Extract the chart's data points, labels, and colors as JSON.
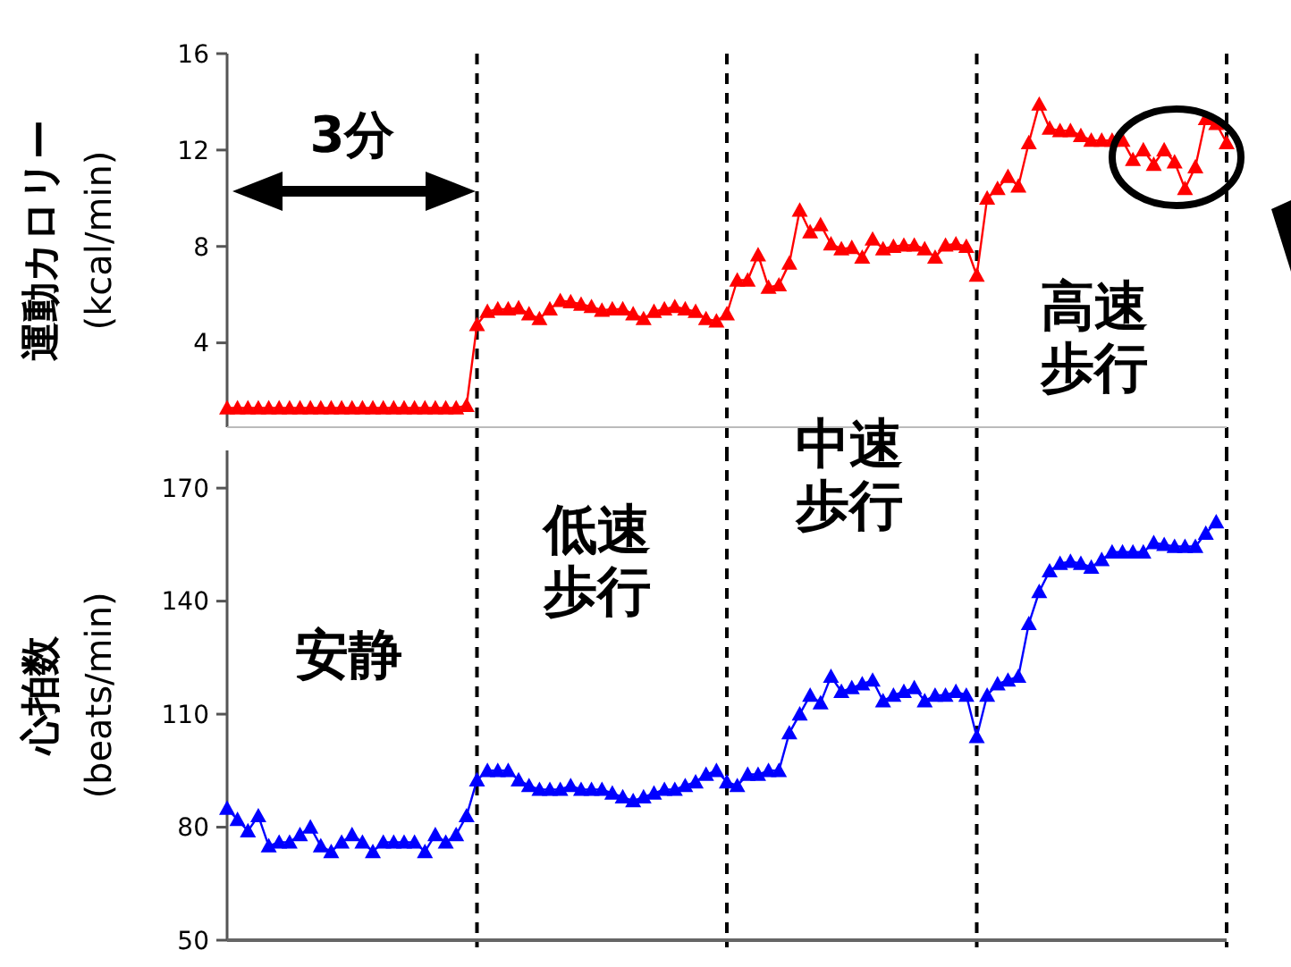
{
  "chart_data": [
    {
      "type": "line",
      "ylabel": "運動カロリー\n(kcal/min)",
      "categories": [
        null,
        null,
        null,
        null,
        null,
        null,
        null,
        null,
        null,
        null,
        null,
        null,
        null,
        null,
        null,
        null,
        null,
        null,
        null,
        null,
        null,
        null,
        null,
        null,
        null,
        null,
        null,
        null,
        null,
        null,
        null,
        null,
        null,
        null,
        null,
        null,
        null,
        null,
        null,
        null,
        null,
        null,
        null,
        null,
        null,
        null,
        null,
        null,
        null,
        null,
        null,
        null,
        null,
        null,
        null,
        null,
        null,
        null,
        null,
        null,
        null,
        null,
        null,
        null,
        null,
        null,
        null,
        null,
        null,
        null,
        null,
        null,
        null,
        null,
        null,
        null,
        null,
        null,
        null,
        null,
        null,
        null,
        null,
        null,
        null,
        null,
        null,
        null,
        null,
        null,
        null,
        null,
        null,
        null,
        null,
        null,
        null
      ],
      "ylim": [
        0.5,
        16
      ],
      "yticks": [
        4,
        8,
        12,
        16
      ],
      "tick_labels": "y",
      "grid": "x",
      "marker": "triangle",
      "line_style": "solid",
      "annotations": [
        "3分",
        "高速歩行"
      ],
      "series": [
        {
          "color": "#ff0000",
          "values": [
            1.3,
            1.3,
            1.3,
            1.3,
            1.3,
            1.3,
            1.3,
            1.3,
            1.3,
            1.3,
            1.3,
            1.3,
            1.3,
            1.3,
            1.3,
            1.3,
            1.3,
            1.3,
            1.3,
            1.3,
            1.3,
            1.3,
            1.3,
            1.4,
            4.75,
            5.3,
            5.4,
            5.4,
            5.45,
            5.2,
            5.0,
            5.4,
            5.75,
            5.7,
            5.6,
            5.5,
            5.35,
            5.4,
            5.4,
            5.2,
            5.0,
            5.3,
            5.4,
            5.5,
            5.4,
            5.3,
            5.0,
            4.9,
            5.2,
            6.6,
            6.6,
            7.65,
            6.3,
            6.4,
            7.3,
            9.5,
            8.6,
            8.9,
            8.1,
            7.9,
            7.95,
            7.55,
            8.3,
            7.9,
            8.0,
            8.05,
            8.05,
            7.9,
            7.55,
            8.05,
            8.1,
            8.0,
            6.8,
            10.0,
            10.4,
            10.9,
            10.5,
            12.3,
            13.9,
            12.9,
            12.8,
            12.8,
            12.6,
            12.4,
            12.4,
            12.4,
            12.4,
            11.6,
            12.0,
            11.4,
            12.0,
            11.5,
            10.4,
            11.3,
            13.3,
            13.1,
            12.3
          ]
        }
      ]
    },
    {
      "type": "line",
      "ylabel": "心拍数\n(beats/min)",
      "categories": [
        null,
        null,
        null,
        null,
        null,
        null,
        null,
        null,
        null,
        null,
        null,
        null,
        null,
        null,
        null,
        null,
        null,
        null,
        null,
        null,
        null,
        null,
        null,
        null,
        null,
        null,
        null,
        null,
        null,
        null,
        null,
        null,
        null,
        null,
        null,
        null,
        null,
        null,
        null,
        null,
        null,
        null,
        null,
        null,
        null,
        null,
        null,
        null,
        null,
        null,
        null,
        null,
        null,
        null,
        null,
        null,
        null,
        null,
        null,
        null,
        null,
        null,
        null,
        null,
        null,
        null,
        null,
        null,
        null,
        null,
        null,
        null,
        null,
        null,
        null,
        null,
        null,
        null,
        null,
        null,
        null,
        null,
        null,
        null,
        null,
        null,
        null,
        null,
        null,
        null,
        null,
        null,
        null,
        null,
        null,
        null,
        null
      ],
      "ylim": [
        50,
        180
      ],
      "yticks": [
        50,
        80,
        110,
        140,
        170
      ],
      "tick_labels": "y",
      "grid": "x",
      "marker": "triangle",
      "line_style": "solid",
      "annotations": [
        "安静",
        "低速歩行",
        "中速歩行"
      ],
      "series": [
        {
          "color": "#0000ff",
          "values": [
            85,
            82,
            79,
            83,
            75,
            76,
            76,
            78,
            80,
            75,
            73.5,
            76,
            78,
            76,
            73.5,
            76,
            76,
            76,
            76,
            73.5,
            78,
            76,
            78,
            83,
            92.5,
            95,
            95,
            95,
            92.5,
            91,
            90,
            90,
            90,
            91,
            90,
            90,
            90,
            89,
            88,
            87,
            88,
            89,
            90,
            90,
            91,
            92,
            94,
            95,
            92,
            91,
            94,
            94,
            95,
            95,
            105,
            110,
            115,
            113,
            120,
            116,
            117,
            118,
            119,
            113.5,
            115,
            116,
            117,
            113.5,
            115,
            115,
            116,
            115,
            104,
            115,
            118,
            119,
            120,
            134,
            142.5,
            148,
            150,
            150.5,
            150,
            149,
            151,
            153,
            153,
            153,
            153,
            155.5,
            155,
            154.5,
            154.5,
            154.5,
            158,
            161,
            null
          ]
        }
      ]
    }
  ]
}
